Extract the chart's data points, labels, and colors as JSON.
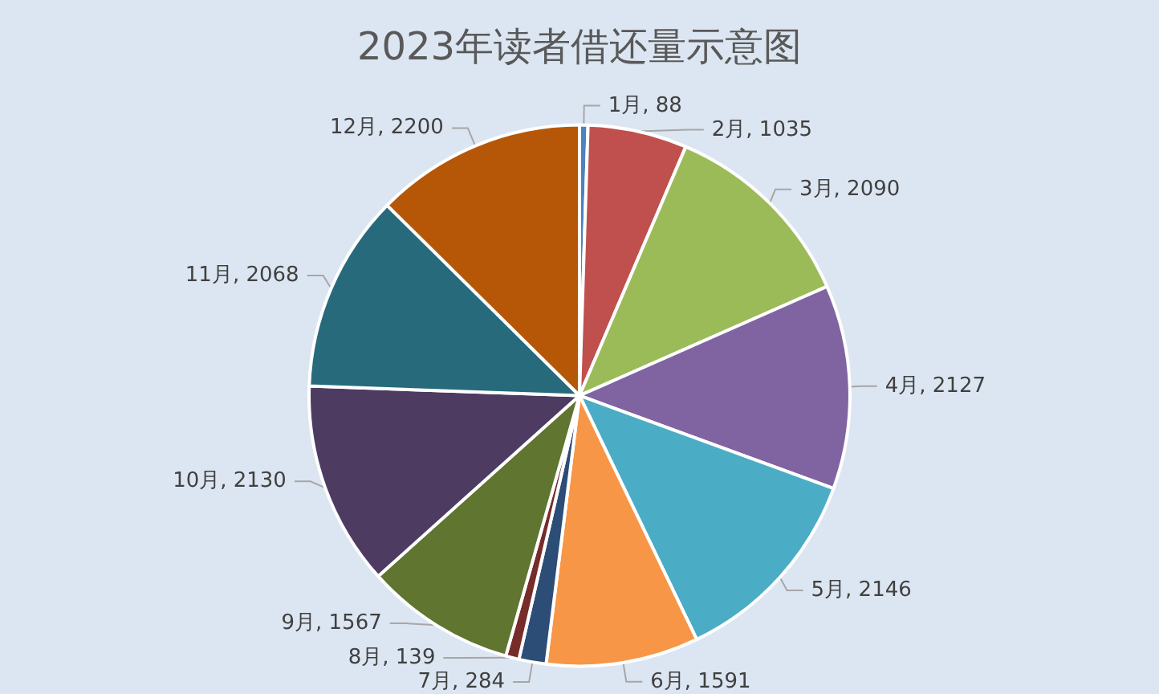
{
  "chart_data": {
    "type": "pie",
    "title": "2023年读者借还量示意图",
    "categories": [
      "1月",
      "2月",
      "3月",
      "4月",
      "5月",
      "6月",
      "7月",
      "8月",
      "9月",
      "10月",
      "11月",
      "12月"
    ],
    "values": [
      88,
      1035,
      2090,
      2127,
      2146,
      1591,
      284,
      139,
      1567,
      2130,
      2068,
      2200
    ],
    "colors": [
      "#4f81bd",
      "#c0504d",
      "#9bbb59",
      "#8064a2",
      "#4bacc6",
      "#f79646",
      "#2c4d75",
      "#772c2a",
      "#5f7530",
      "#4d3b62",
      "#276a7c",
      "#b65708"
    ],
    "value_labels": [
      ", 88",
      ", 1035",
      ", 2090",
      ", 2127",
      ", 2146",
      ", 1591",
      ", 284",
      ", 139",
      ", 1567",
      ", 2130",
      ", 2068",
      ", 2200"
    ],
    "legend": false
  }
}
